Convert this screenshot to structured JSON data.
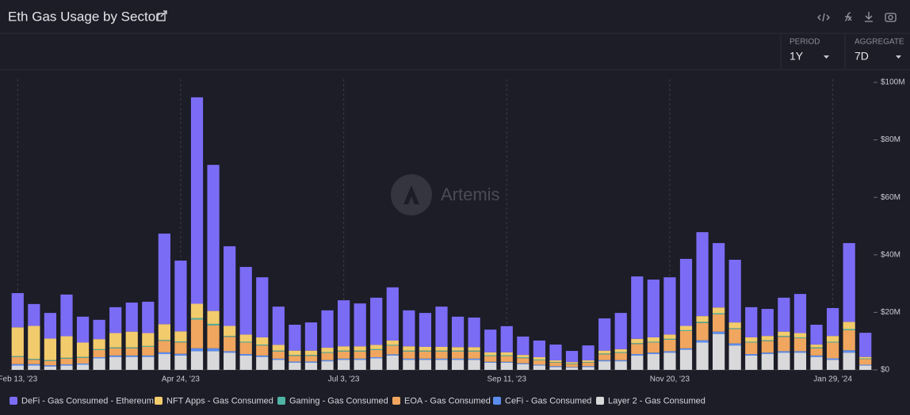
{
  "header": {
    "title": "Eth Gas Usage by Sector",
    "period_label": "PERIOD",
    "period_value": "1Y",
    "aggregate_label": "AGGREGATE",
    "aggregate_value": "7D",
    "watermark": "Artemis"
  },
  "chart_data": {
    "type": "bar",
    "stacked": true,
    "xgrid": true,
    "categories": [
      "Feb 13, '23",
      null,
      null,
      null,
      null,
      null,
      null,
      null,
      null,
      null,
      "Apr 24, '23",
      null,
      null,
      null,
      null,
      null,
      null,
      null,
      null,
      null,
      "Jul 3, '23",
      null,
      null,
      null,
      null,
      null,
      null,
      null,
      null,
      null,
      "Sep 11, '23",
      null,
      null,
      null,
      null,
      null,
      null,
      null,
      null,
      null,
      "Nov 20, '23",
      null,
      null,
      null,
      null,
      null,
      null,
      null,
      null,
      null,
      "Jan 29, '24",
      null,
      null
    ],
    "ylim": [
      0,
      100
    ],
    "yticks": [
      {
        "value": 0,
        "label": "$0"
      },
      {
        "value": 20,
        "label": "$20M"
      },
      {
        "value": 40,
        "label": "$40M"
      },
      {
        "value": 60,
        "label": "$60M"
      },
      {
        "value": 80,
        "label": "$80M"
      },
      {
        "value": 100,
        "label": "$100M"
      }
    ],
    "series": [
      {
        "name": "Layer 2 - Gas Consumed",
        "color": "#d9d9dc",
        "values": [
          1.5,
          1.5,
          1.2,
          1.5,
          1.8,
          4,
          4.5,
          4.5,
          4.5,
          5.5,
          5,
          6.5,
          6.5,
          6,
          5,
          4.5,
          3.5,
          2.5,
          2.5,
          3,
          3.5,
          3.5,
          4,
          5,
          3.5,
          3.5,
          3.5,
          3.5,
          3.5,
          2.5,
          2.5,
          2,
          1.5,
          1,
          0.8,
          1,
          3,
          3,
          5,
          5.5,
          6,
          7,
          9.5,
          12.5,
          8.5,
          5,
          5.5,
          6,
          6,
          4.5,
          3.5,
          6,
          1.5
        ]
      },
      {
        "name": "CeFi - Gas Consumed",
        "color": "#5b8def",
        "values": [
          0.5,
          0.5,
          0.4,
          0.4,
          0.4,
          0.4,
          0.5,
          0.5,
          0.5,
          0.6,
          0.6,
          1,
          1,
          0.5,
          0.5,
          0.5,
          0.4,
          0.4,
          0.4,
          0.4,
          0.4,
          0.4,
          0.4,
          0.4,
          0.4,
          0.4,
          0.4,
          0.4,
          0.4,
          0.3,
          0.3,
          0.3,
          0.3,
          0.3,
          0.2,
          0.3,
          0.4,
          0.4,
          0.5,
          0.5,
          0.5,
          0.5,
          0.8,
          0.8,
          0.7,
          0.5,
          0.5,
          0.5,
          0.5,
          0.5,
          0.5,
          0.8,
          0.3
        ]
      },
      {
        "name": "EOA - Gas Consumed",
        "color": "#f0a65e",
        "values": [
          2.5,
          1.5,
          1.5,
          2,
          2,
          2.5,
          2.5,
          2.5,
          3,
          4,
          4,
          10,
          8,
          5,
          4,
          3.5,
          2.5,
          2,
          2,
          2.5,
          2.5,
          2.5,
          2.5,
          3,
          2.5,
          2.5,
          2.5,
          2.5,
          2.5,
          2,
          2,
          1.8,
          1.5,
          1.2,
          1,
          1.2,
          2,
          2.5,
          3.5,
          3.5,
          4,
          6,
          6,
          6,
          5,
          4,
          4,
          5,
          4.5,
          2.5,
          5.5,
          7,
          2
        ]
      },
      {
        "name": "Gaming - Gas Consumed",
        "color": "#4fb3a3",
        "values": [
          0.3,
          0.3,
          0.3,
          0.3,
          0.3,
          0.3,
          0.3,
          0.3,
          0.3,
          0.3,
          0.3,
          0.5,
          0.5,
          0.3,
          0.3,
          0.3,
          0.3,
          0.3,
          0.3,
          0.3,
          0.3,
          0.3,
          0.3,
          0.3,
          0.3,
          0.3,
          0.3,
          0.3,
          0.3,
          0.3,
          0.3,
          0.3,
          0.3,
          0.2,
          0.2,
          0.2,
          0.3,
          0.3,
          0.3,
          0.3,
          0.3,
          0.3,
          0.4,
          0.4,
          0.3,
          0.3,
          0.3,
          0.3,
          0.3,
          0.3,
          0.3,
          0.4,
          0.2
        ]
      },
      {
        "name": "NFT Apps - Gas Consumed",
        "color": "#f2cb6c",
        "values": [
          10,
          11.5,
          7.5,
          7.5,
          5,
          3.5,
          5,
          5.5,
          4.5,
          5.5,
          3.5,
          5,
          4.5,
          3.5,
          2.5,
          2.5,
          2,
          1.5,
          1.5,
          1.5,
          1.5,
          1.5,
          1.5,
          1.5,
          1.5,
          1.3,
          1.3,
          1.2,
          1.2,
          1,
          1,
          0.8,
          0.8,
          0.6,
          0.5,
          0.6,
          1,
          1,
          1.5,
          1.5,
          1.5,
          1.5,
          2,
          2,
          2,
          1.5,
          1.5,
          1.5,
          1.5,
          1,
          2,
          2.5,
          0.5
        ]
      },
      {
        "name": "DeFi - Gas Consumed - Ethereum",
        "color": "#7b6cf6",
        "values": [
          11.9,
          7.6,
          8.9,
          14.5,
          9,
          6.7,
          9,
          10.1,
          10.9,
          31.5,
          24.6,
          71.8,
          50.8,
          27.7,
          23.5,
          20.9,
          13.3,
          9,
          9.8,
          13,
          16,
          14.9,
          16.4,
          18.5,
          12.5,
          11.8,
          14,
          10.6,
          10.3,
          7.9,
          9.1,
          6.4,
          5.8,
          5.5,
          3.9,
          5.2,
          11.2,
          12.6,
          21.7,
          20.1,
          19.9,
          23.3,
          29.2,
          22.4,
          21.8,
          10.5,
          9.4,
          11.8,
          13.6,
          6.9,
          9.7,
          27.4,
          8.4
        ]
      }
    ],
    "legend_order": [
      5,
      4,
      3,
      2,
      1,
      0
    ]
  }
}
